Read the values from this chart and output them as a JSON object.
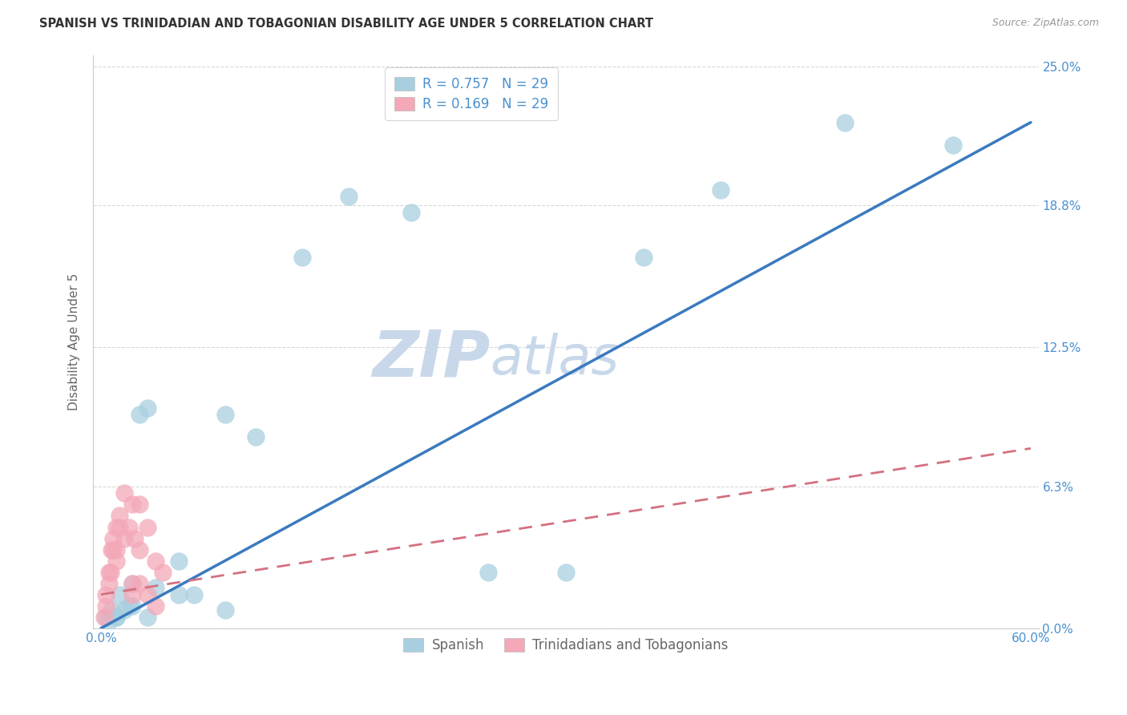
{
  "title": "SPANISH VS TRINIDADIAN AND TOBAGONIAN DISABILITY AGE UNDER 5 CORRELATION CHART",
  "source": "Source: ZipAtlas.com",
  "ylabel_label": "Disability Age Under 5",
  "ylabel_values": [
    0.0,
    6.3,
    12.5,
    18.8,
    25.0
  ],
  "xlim": [
    0.0,
    60.0
  ],
  "ylim": [
    0.0,
    25.0
  ],
  "legend_label1": "R = 0.757   N = 29",
  "legend_label2": "R = 0.169   N = 29",
  "legend_xlabel": "Spanish",
  "legend_xlabel2": "Trinidadians and Tobagonians",
  "blue_color": "#a8cfe0",
  "pink_color": "#f4a8b8",
  "line_blue": "#3a7abf",
  "line_pink": "#d47080",
  "watermark_zip": "ZIP",
  "watermark_atlas": "atlas",
  "watermark_color": "#c8d8ea",
  "background_color": "#ffffff",
  "grid_color": "#d8d8d8",
  "tick_color": "#4a90d0",
  "label_color": "#666666",
  "title_color": "#333333",
  "source_color": "#999999",
  "spanish_x": [
    0.3,
    0.5,
    0.7,
    1.0,
    1.2,
    1.5,
    1.8,
    2.0,
    2.5,
    3.0,
    3.5,
    5.0,
    6.0,
    8.0,
    10.0,
    13.0,
    16.0,
    20.0,
    25.0,
    30.0,
    35.0,
    40.0,
    48.0,
    55.0,
    1.0,
    2.0,
    3.0,
    5.0,
    8.0
  ],
  "spanish_y": [
    0.5,
    0.3,
    0.8,
    0.5,
    1.5,
    0.8,
    1.0,
    2.0,
    9.5,
    9.8,
    1.8,
    3.0,
    1.5,
    9.5,
    8.5,
    16.5,
    19.2,
    18.5,
    2.5,
    2.5,
    16.5,
    19.5,
    22.5,
    21.5,
    0.5,
    1.0,
    0.5,
    1.5,
    0.8
  ],
  "trini_x": [
    0.2,
    0.3,
    0.5,
    0.7,
    0.8,
    1.0,
    1.2,
    1.5,
    1.8,
    2.0,
    2.2,
    2.5,
    3.0,
    3.5,
    4.0,
    1.0,
    1.5,
    2.0,
    2.5,
    3.0,
    0.5,
    0.8,
    1.2,
    2.0,
    3.5,
    0.3,
    0.6,
    1.0,
    2.5
  ],
  "trini_y": [
    0.5,
    1.0,
    2.5,
    3.5,
    4.0,
    4.5,
    5.0,
    6.0,
    4.5,
    5.5,
    4.0,
    5.5,
    4.5,
    3.0,
    2.5,
    3.0,
    4.0,
    2.0,
    3.5,
    1.5,
    2.0,
    3.5,
    4.5,
    1.5,
    1.0,
    1.5,
    2.5,
    3.5,
    2.0
  ],
  "blue_line_x0": 0.0,
  "blue_line_y0": 0.0,
  "blue_line_x1": 60.0,
  "blue_line_y1": 22.5,
  "pink_line_x0": 0.0,
  "pink_line_y0": 1.5,
  "pink_line_x1": 60.0,
  "pink_line_y1": 8.0
}
